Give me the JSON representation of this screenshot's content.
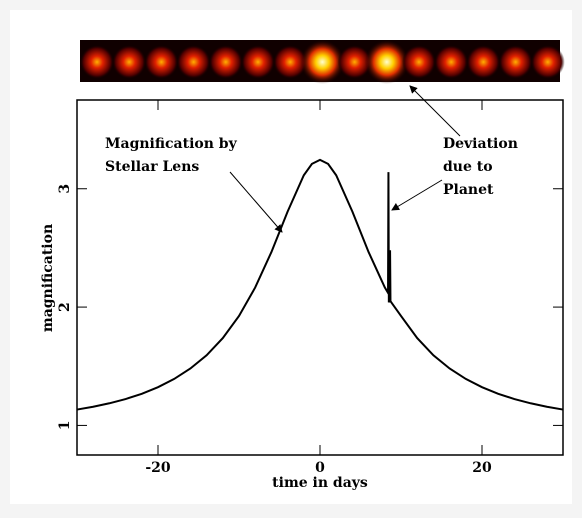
{
  "chart_data": {
    "type": "line",
    "x_label": "time in days",
    "y_label": "magnification",
    "xlim": [
      -30,
      30
    ],
    "ylim": [
      0.75,
      3.75
    ],
    "xticks": [
      -20,
      0,
      20
    ],
    "yticks": [
      1,
      2,
      3
    ],
    "annotations": [
      {
        "lines": [
          "Magnification by",
          "Stellar Lens"
        ]
      },
      {
        "lines": [
          "Deviation",
          "due to",
          "Planet"
        ]
      }
    ],
    "series": [
      {
        "color": "#000000",
        "x": [
          -30,
          -28,
          -26,
          -24,
          -22,
          -20,
          -18,
          -16,
          -14,
          -12,
          -10,
          -8,
          -6,
          -4,
          -2,
          -1,
          0,
          1,
          2,
          4,
          6,
          8,
          8.4,
          8.45,
          8.5,
          8.6,
          8.65,
          8.7,
          10,
          12,
          14,
          16,
          18,
          20,
          22,
          24,
          26,
          28,
          30
        ],
        "values": [
          1.134,
          1.158,
          1.187,
          1.223,
          1.267,
          1.323,
          1.393,
          1.481,
          1.593,
          1.738,
          1.925,
          2.166,
          2.465,
          2.807,
          3.114,
          3.21,
          3.244,
          3.21,
          3.114,
          2.807,
          2.465,
          2.166,
          2.12,
          3.14,
          2.04,
          2.06,
          2.48,
          2.05,
          1.925,
          1.738,
          1.593,
          1.481,
          1.393,
          1.323,
          1.267,
          1.223,
          1.187,
          1.158,
          1.134
        ]
      }
    ]
  }
}
